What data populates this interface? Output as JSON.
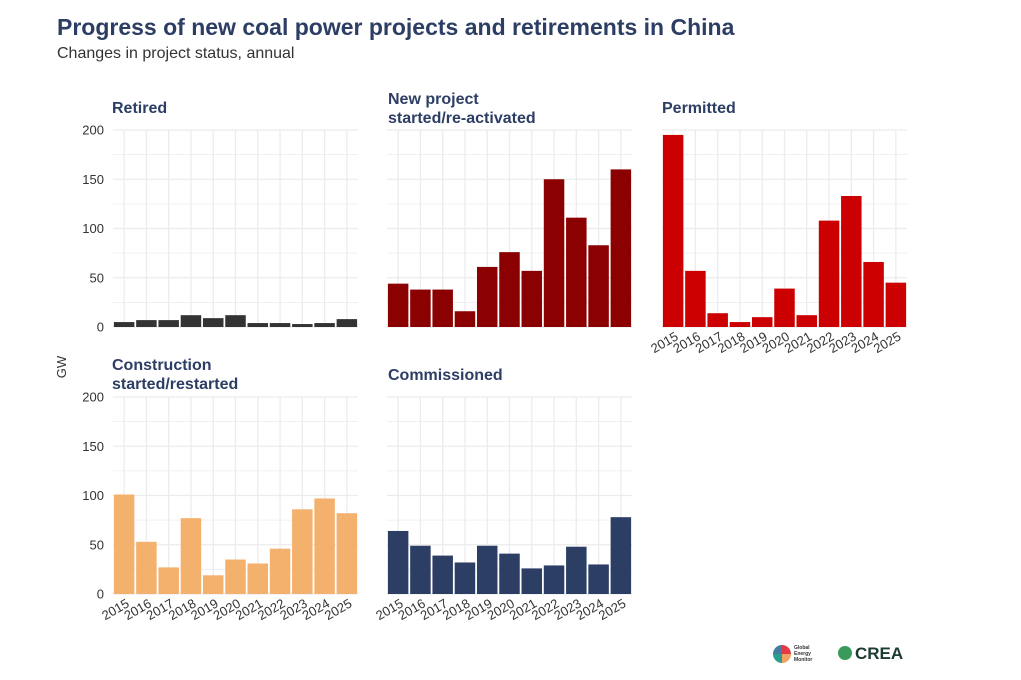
{
  "title": "Progress of new coal power projects and retirements in China",
  "subtitle": "Changes in project status, annual",
  "y_axis_label": "GW",
  "logos": {
    "gem": "Global Energy Monitor",
    "crea": "CREA"
  },
  "chart_data": [
    {
      "type": "bar",
      "title_lines": [
        "Retired"
      ],
      "categories": [
        "2015",
        "2016",
        "2017",
        "2018",
        "2019",
        "2020",
        "2021",
        "2022",
        "2023",
        "2024",
        "2025"
      ],
      "values": [
        5,
        7,
        7,
        12,
        9,
        12,
        4,
        4,
        3,
        4,
        8
      ],
      "color": "#333333",
      "ylim": [
        0,
        200
      ],
      "yticks": [
        0,
        50,
        100,
        150,
        200
      ],
      "show_y_ticks": true,
      "show_x_ticks": false
    },
    {
      "type": "bar",
      "title_lines": [
        "New project",
        "started/re-activated"
      ],
      "categories": [
        "2015",
        "2016",
        "2017",
        "2018",
        "2019",
        "2020",
        "2021",
        "2022",
        "2023",
        "2024",
        "2025"
      ],
      "values": [
        44,
        38,
        38,
        16,
        61,
        76,
        57,
        150,
        111,
        83,
        160
      ],
      "color": "#8b0000",
      "ylim": [
        0,
        200
      ],
      "yticks": [
        0,
        50,
        100,
        150,
        200
      ],
      "show_y_ticks": false,
      "show_x_ticks": false
    },
    {
      "type": "bar",
      "title_lines": [
        "Permitted"
      ],
      "categories": [
        "2015",
        "2016",
        "2017",
        "2018",
        "2019",
        "2020",
        "2021",
        "2022",
        "2023",
        "2024",
        "2025"
      ],
      "values": [
        195,
        57,
        14,
        5,
        10,
        39,
        12,
        108,
        133,
        66,
        45
      ],
      "color": "#cc0000",
      "ylim": [
        0,
        200
      ],
      "yticks": [
        0,
        50,
        100,
        150,
        200
      ],
      "show_y_ticks": false,
      "show_x_ticks": true
    },
    {
      "type": "bar",
      "title_lines": [
        "Construction",
        "started/restarted"
      ],
      "categories": [
        "2015",
        "2016",
        "2017",
        "2018",
        "2019",
        "2020",
        "2021",
        "2022",
        "2023",
        "2024",
        "2025"
      ],
      "values": [
        101,
        53,
        27,
        77,
        19,
        35,
        31,
        46,
        86,
        97,
        82
      ],
      "color": "#f4b16d",
      "ylim": [
        0,
        200
      ],
      "yticks": [
        0,
        50,
        100,
        150,
        200
      ],
      "show_y_ticks": true,
      "show_x_ticks": true
    },
    {
      "type": "bar",
      "title_lines": [
        "Commissioned"
      ],
      "categories": [
        "2015",
        "2016",
        "2017",
        "2018",
        "2019",
        "2020",
        "2021",
        "2022",
        "2023",
        "2024",
        "2025"
      ],
      "values": [
        64,
        49,
        39,
        32,
        49,
        41,
        26,
        29,
        48,
        30,
        78
      ],
      "color": "#2d3e64",
      "ylim": [
        0,
        200
      ],
      "yticks": [
        0,
        50,
        100,
        150,
        200
      ],
      "show_y_ticks": false,
      "show_x_ticks": true
    }
  ]
}
